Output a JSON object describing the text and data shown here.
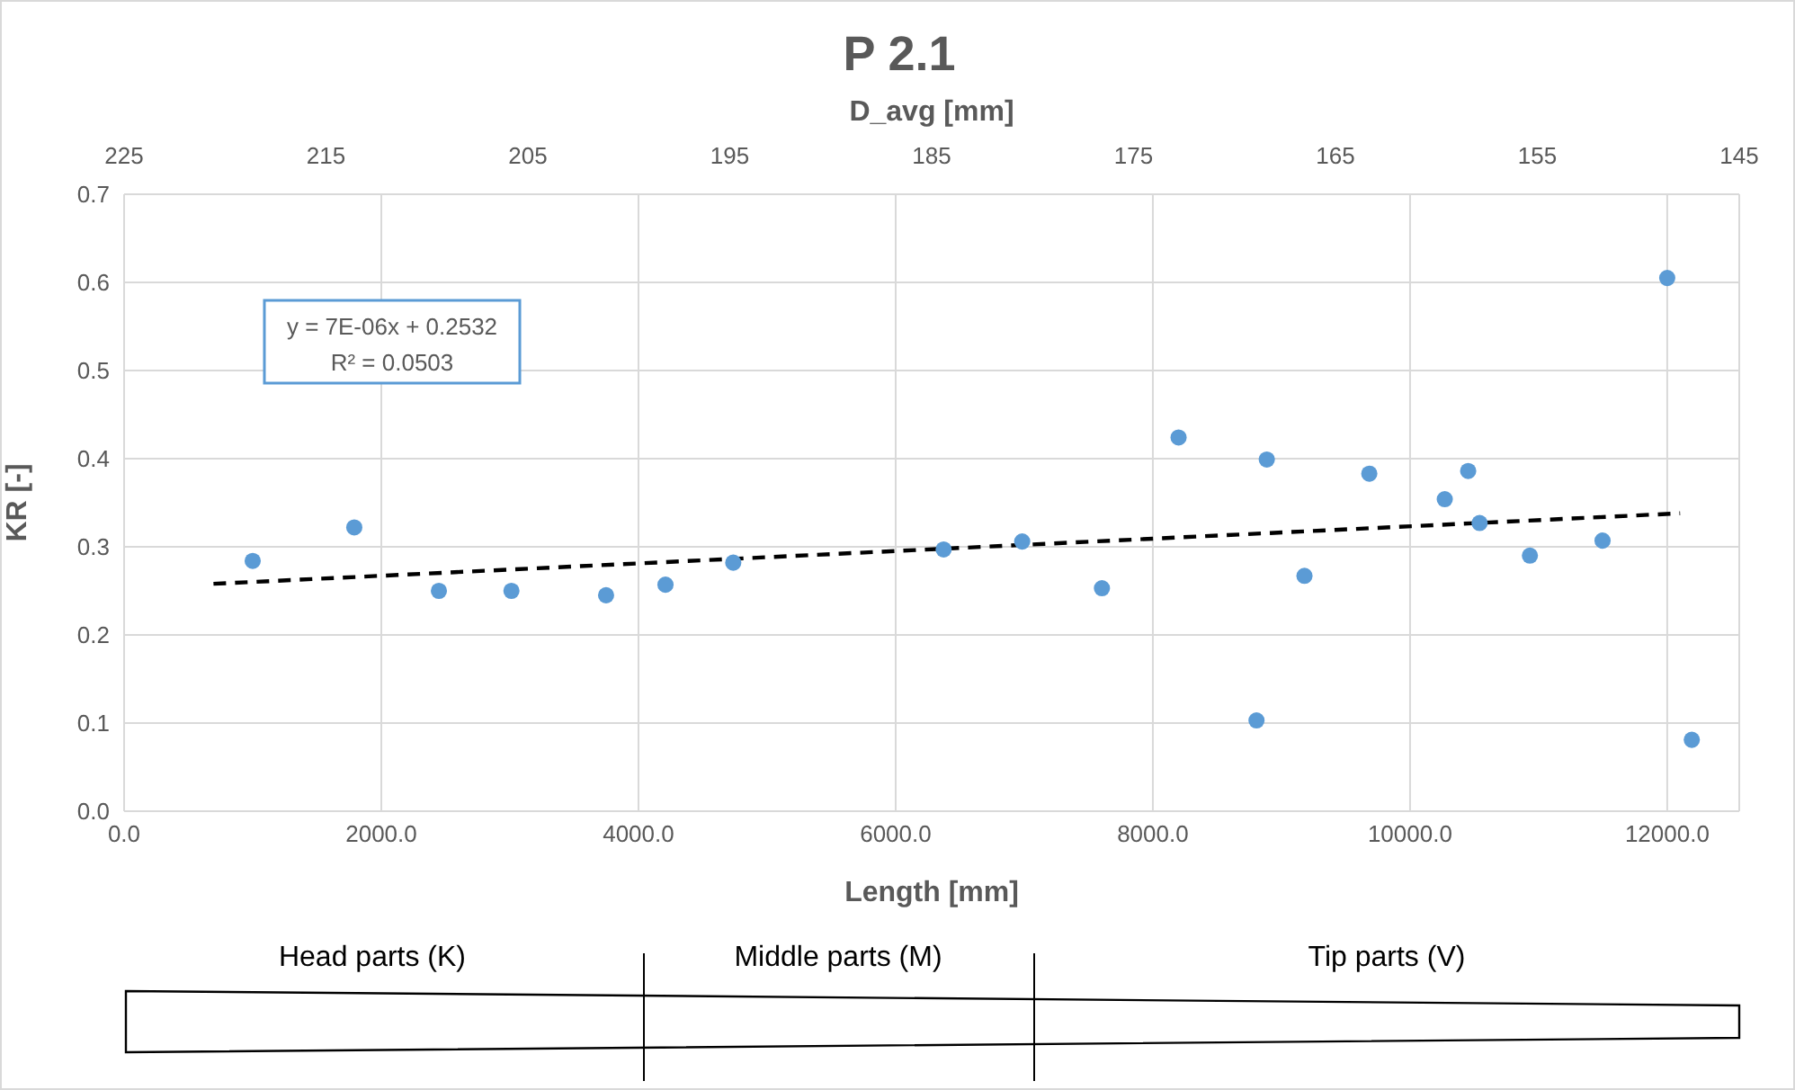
{
  "chart_data": {
    "type": "scatter",
    "title": "P 2.1",
    "xlabel": "Length [mm]",
    "ylabel": "KR [-]",
    "x2label": "D_avg [mm]",
    "xlim": [
      0,
      12560
    ],
    "xticks": [
      {
        "value": 0,
        "label": "0.0"
      },
      {
        "value": 2000,
        "label": "2000.0"
      },
      {
        "value": 4000,
        "label": "4000.0"
      },
      {
        "value": 6000,
        "label": "6000.0"
      },
      {
        "value": 8000,
        "label": "8000.0"
      },
      {
        "value": 10000,
        "label": "10000.0"
      },
      {
        "value": 12000,
        "label": "12000.0"
      }
    ],
    "x2lim": [
      225,
      145
    ],
    "x2ticks": [
      225,
      215,
      205,
      195,
      185,
      175,
      165,
      155,
      145
    ],
    "ylim": [
      0,
      0.7
    ],
    "yticks": [
      {
        "value": 0,
        "label": "0.0"
      },
      0.1,
      0.2,
      0.3,
      0.4,
      0.5,
      0.6,
      0.7
    ],
    "grid": true,
    "marker": "circle",
    "series": [
      {
        "color": "#5b9bd5",
        "x": [
          1000,
          1790,
          2448,
          3012,
          3748,
          4210,
          4737,
          6373,
          6984,
          7604,
          8200,
          8806,
          8886,
          9179,
          9683,
          10270,
          10452,
          10541,
          10932,
          11497,
          12000,
          12191
        ],
        "values": [
          0.284,
          0.322,
          0.25,
          0.25,
          0.245,
          0.257,
          0.282,
          0.297,
          0.306,
          0.253,
          0.424,
          0.103,
          0.399,
          0.267,
          0.383,
          0.354,
          0.386,
          0.327,
          0.29,
          0.307,
          0.605,
          0.081
        ]
      },
      {
        "type": "line",
        "color": "#000000",
        "line_style": "dashed",
        "marker": "none",
        "x": [
          695,
          12100
        ],
        "values": [
          0.258,
          0.338
        ]
      }
    ],
    "annotations": [
      "y = 7E-06x + 0.2532",
      "R² = 0.0503",
      "Head parts (K)",
      "Middle parts (M)",
      "Tip parts (V)"
    ]
  }
}
